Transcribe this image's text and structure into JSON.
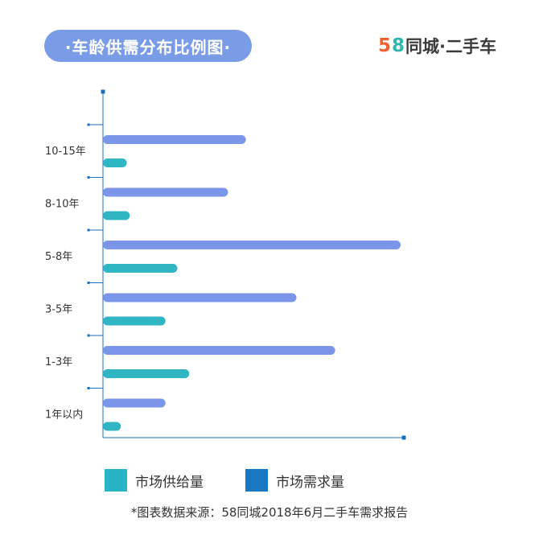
{
  "header": {
    "title": "·车龄供需分布比例图·",
    "brand_num_5": "5",
    "brand_num_8": "8",
    "brand_text": "同城·二手车"
  },
  "colors": {
    "title_bg": "#7a9be6",
    "brand_5": "#f2612d",
    "brand_8": "#2fb6b0",
    "demand_bar": "#7b96e8",
    "supply_bar": "#30b5c3",
    "legend_supply": "#29b2c6",
    "legend_demand": "#1a78c2",
    "axis": "#1d6fb8"
  },
  "chart_data": {
    "type": "bar",
    "orientation": "horizontal",
    "categories": [
      "10-15年",
      "8-10年",
      "5-8年",
      "3-5年",
      "1-3年",
      "1年以内"
    ],
    "series": [
      {
        "name": "市场需求量",
        "values": [
          48,
          42,
          100,
          65,
          78,
          21
        ]
      },
      {
        "name": "市场供给量",
        "values": [
          8,
          9,
          25,
          21,
          29,
          6
        ]
      }
    ],
    "xlim": [
      0,
      100
    ],
    "grid": false,
    "legend_position": "bottom"
  },
  "legend": {
    "supply": "市场供给量",
    "demand": "市场需求量"
  },
  "footnote": "*图表数据来源：58同城2018年6月二手车需求报告"
}
